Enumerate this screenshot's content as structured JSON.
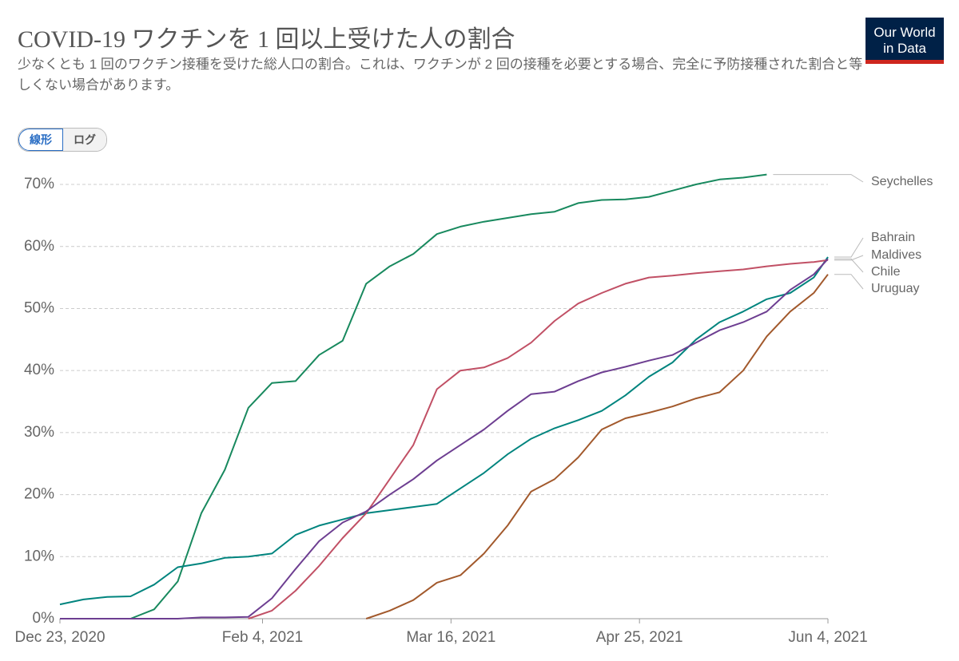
{
  "chart_data": {
    "type": "line",
    "title": "COVID-19 ワクチンを 1 回以上受けた人の割合",
    "subtitle": "少なくとも 1 回のワクチン接種を受けた総人口の割合。これは、ワクチンが 2 回の接種を必要とする場合、完全に予防接種された割合と等しくない場合があります。",
    "logo": [
      "Our World",
      "in Data"
    ],
    "controls": [
      "線形",
      "ログ"
    ],
    "x": [
      "2020-12-23",
      "2020-12-28",
      "2021-01-02",
      "2021-01-07",
      "2021-01-12",
      "2021-01-17",
      "2021-01-22",
      "2021-01-27",
      "2021-02-01",
      "2021-02-06",
      "2021-02-11",
      "2021-02-16",
      "2021-02-21",
      "2021-02-26",
      "2021-03-03",
      "2021-03-08",
      "2021-03-13",
      "2021-03-18",
      "2021-03-23",
      "2021-03-28",
      "2021-04-02",
      "2021-04-07",
      "2021-04-12",
      "2021-04-17",
      "2021-04-22",
      "2021-04-27",
      "2021-05-02",
      "2021-05-07",
      "2021-05-12",
      "2021-05-17",
      "2021-05-22",
      "2021-05-27",
      "2021-06-01",
      "2021-06-04"
    ],
    "series": [
      {
        "name": "Seychelles",
        "color": "#18895e",
        "values": [
          null,
          null,
          null,
          0,
          1.5,
          6,
          17,
          24,
          34,
          38,
          38.3,
          42.5,
          44.8,
          54,
          56.8,
          58.8,
          62,
          63.2,
          64,
          64.6,
          65.2,
          65.6,
          67,
          67.5,
          67.6,
          68,
          69,
          70,
          70.8,
          71.1,
          71.6,
          null,
          null,
          null
        ]
      },
      {
        "name": "Bahrain",
        "color": "#00847e",
        "values": [
          2.3,
          3.1,
          3.5,
          3.6,
          5.5,
          8.3,
          8.9,
          9.8,
          10,
          10.5,
          13.5,
          15,
          16,
          17,
          17.5,
          18,
          18.5,
          21,
          23.5,
          26.5,
          29,
          30.7,
          32,
          33.5,
          36,
          39,
          41.3,
          45,
          47.8,
          49.5,
          51.5,
          52.5,
          55,
          58.3
        ]
      },
      {
        "name": "Maldives",
        "color": "#c15065",
        "values": [
          null,
          null,
          null,
          null,
          null,
          null,
          null,
          null,
          0,
          1.3,
          4.5,
          8.5,
          13,
          17,
          22.5,
          28,
          37,
          40,
          40.5,
          42,
          44.5,
          48,
          50.8,
          52.5,
          54,
          55,
          55.3,
          55.7,
          56,
          56.3,
          56.8,
          57.2,
          57.5,
          57.8
        ]
      },
      {
        "name": "Chile",
        "color": "#6d3e91",
        "values": [
          0,
          0,
          0,
          0,
          0,
          0,
          0.2,
          0.2,
          0.3,
          3.3,
          8,
          12.5,
          15.5,
          17.3,
          20,
          22.5,
          25.5,
          28,
          30.5,
          33.5,
          36.2,
          36.6,
          38.3,
          39.7,
          40.6,
          41.6,
          42.5,
          44.5,
          46.5,
          47.8,
          49.5,
          53,
          55.5,
          58
        ]
      },
      {
        "name": "Uruguay",
        "color": "#a2592c",
        "values": [
          null,
          null,
          null,
          null,
          null,
          null,
          null,
          null,
          null,
          null,
          null,
          null,
          null,
          0,
          1.3,
          3,
          5.8,
          7,
          10.5,
          15,
          20.5,
          22.5,
          26,
          30.5,
          32.3,
          33.2,
          34.2,
          35.5,
          36.5,
          40,
          45.5,
          49.5,
          52.5,
          55.5
        ]
      }
    ],
    "xlim": [
      "2020-12-23",
      "2021-06-04"
    ],
    "xticks": [
      {
        "value": "2020-12-23",
        "label": "Dec 23, 2020"
      },
      {
        "value": "2021-02-04",
        "label": "Feb 4, 2021"
      },
      {
        "value": "2021-03-16",
        "label": "Mar 16, 2021"
      },
      {
        "value": "2021-04-25",
        "label": "Apr 25, 2021"
      },
      {
        "value": "2021-06-04",
        "label": "Jun 4, 2021"
      }
    ],
    "ylim": [
      0,
      72
    ],
    "yticks": [
      {
        "value": 0,
        "label": "0%"
      },
      {
        "value": 10,
        "label": "10%"
      },
      {
        "value": 20,
        "label": "20%"
      },
      {
        "value": 30,
        "label": "30%"
      },
      {
        "value": 40,
        "label": "40%"
      },
      {
        "value": 50,
        "label": "50%"
      },
      {
        "value": 60,
        "label": "60%"
      },
      {
        "value": 70,
        "label": "70%"
      }
    ],
    "grid": true
  }
}
